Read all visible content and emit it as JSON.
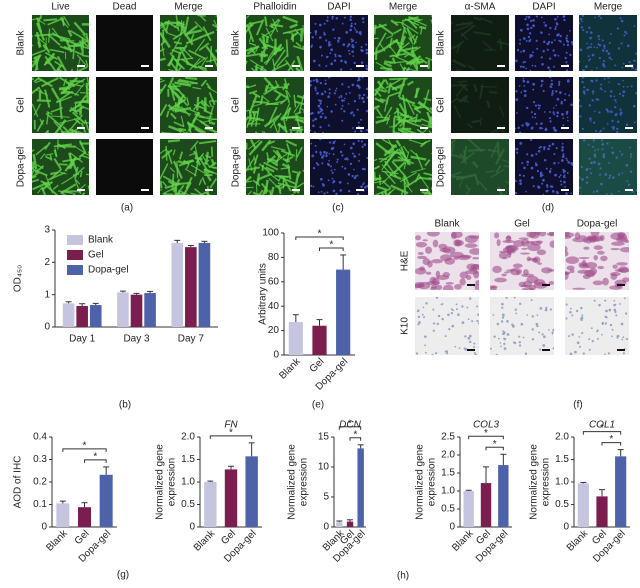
{
  "micrographs": [
    {
      "columns": [
        "Live",
        "Dead",
        "Merge"
      ],
      "rows": [
        "Blank",
        "Gel",
        "Dopa-gel"
      ],
      "label": "(a)"
    },
    {
      "columns": [
        "Phalloidin",
        "DAPI",
        "Merge"
      ],
      "rows": [
        "Blank",
        "Gel",
        "Dopa-gel"
      ],
      "label": "(c)"
    },
    {
      "columns": [
        "α-SMA",
        "DAPI",
        "Merge"
      ],
      "rows": [
        "Blank",
        "Gel",
        "Dopa-gel"
      ],
      "label": "(d)"
    },
    {
      "columns": [
        "Blank",
        "Gel",
        "Dopa-gel"
      ],
      "rows": [
        "H&E",
        "K10"
      ],
      "label": "(f)"
    }
  ],
  "chart_data": [
    {
      "type": "bar",
      "ylabel": "OD₄₅₀",
      "label": "(b)",
      "categories": [
        "Day 1",
        "Day 3",
        "Day 7"
      ],
      "series": [
        {
          "name": "Blank",
          "color": "#c5c5df",
          "values": [
            0.73,
            1.07,
            2.6
          ],
          "errors": [
            0.05,
            0.04,
            0.08
          ]
        },
        {
          "name": "Gel",
          "color": "#7b1d4f",
          "values": [
            0.65,
            1.0,
            2.47
          ],
          "errors": [
            0.07,
            0.04,
            0.05
          ]
        },
        {
          "name": "Dopa-gel",
          "color": "#4d62a8",
          "values": [
            0.68,
            1.05,
            2.6
          ],
          "errors": [
            0.05,
            0.05,
            0.05
          ]
        }
      ],
      "ylim": [
        0,
        3
      ],
      "yticks": [
        0,
        1,
        2,
        3
      ],
      "legend": "upper left"
    },
    {
      "type": "bar",
      "ylabel": "Arbitrary units",
      "label": "(e)",
      "categories": [
        "Blank",
        "Gel",
        "Dopa-gel"
      ],
      "values": [
        27,
        24,
        70
      ],
      "errors": [
        6,
        5,
        12
      ],
      "colors": [
        "#c5c5df",
        "#7b1d4f",
        "#4d62a8"
      ],
      "ylim": [
        0,
        100
      ],
      "yticks": [
        0,
        20,
        40,
        60,
        80,
        100
      ],
      "significance": [
        {
          "between": [
            "Blank",
            "Dopa-gel"
          ],
          "label": "*"
        },
        {
          "between": [
            "Gel",
            "Dopa-gel"
          ],
          "label": "*"
        }
      ]
    },
    {
      "type": "bar",
      "ylabel": "AOD of IHC",
      "label": "(g)",
      "categories": [
        "Blank",
        "Gel",
        "Dopa-gel"
      ],
      "values": [
        0.105,
        0.088,
        0.232
      ],
      "errors": [
        0.01,
        0.02,
        0.035
      ],
      "colors": [
        "#c5c5df",
        "#7b1d4f",
        "#4d62a8"
      ],
      "ylim": [
        0,
        0.4
      ],
      "yticks": [
        0,
        0.1,
        0.2,
        0.3,
        0.4
      ],
      "significance": [
        {
          "between": [
            "Blank",
            "Dopa-gel"
          ],
          "label": "*"
        },
        {
          "between": [
            "Gel",
            "Dopa-gel"
          ],
          "label": "*"
        }
      ]
    },
    {
      "type": "bar",
      "title": "FN",
      "ylabel": [
        "Normalized gene",
        "expression"
      ],
      "categories": [
        "Blank",
        "Gel",
        "Dopa-gel"
      ],
      "values": [
        1.0,
        1.28,
        1.57
      ],
      "errors": [
        0.02,
        0.07,
        0.3
      ],
      "colors": [
        "#c5c5df",
        "#7b1d4f",
        "#4d62a8"
      ],
      "ylim": [
        0,
        2
      ],
      "yticks": [
        0,
        0.5,
        {
          "value": 1,
          "label": "1.0"
        },
        1.5,
        {
          "value": 2,
          "label": "2.0"
        }
      ],
      "significance": [
        {
          "between": [
            "Blank",
            "Dopa-gel"
          ],
          "label": "*"
        }
      ]
    },
    {
      "type": "bar",
      "title": "DCN",
      "ylabel": [
        "Normalized gene",
        "expression"
      ],
      "categories": [
        "Blank",
        "Gel",
        "Dopa-gel"
      ],
      "values": [
        0.8,
        0.9,
        13.1
      ],
      "errors": [
        0.2,
        0.3,
        0.6
      ],
      "colors": [
        "#c5c5df",
        "#7b1d4f",
        "#4d62a8"
      ],
      "ylim": [
        0,
        15
      ],
      "yticks": [
        0,
        5,
        10,
        15
      ],
      "significance": [
        {
          "between": [
            "Blank",
            "Dopa-gel"
          ],
          "label": "*"
        },
        {
          "between": [
            "Gel",
            "Dopa-gel"
          ],
          "label": "*"
        }
      ]
    },
    {
      "type": "bar",
      "title": "COL3",
      "ylabel": [
        "Normalized gene",
        "expression"
      ],
      "categories": [
        "Blank",
        "Gel",
        "Dopa-gel"
      ],
      "values": [
        1.0,
        1.22,
        1.72
      ],
      "errors": [
        0.02,
        0.45,
        0.3
      ],
      "colors": [
        "#c5c5df",
        "#7b1d4f",
        "#4d62a8"
      ],
      "ylim": [
        0,
        2.5
      ],
      "yticks": [
        0,
        0.5,
        {
          "value": 1,
          "label": "1.0"
        },
        1.5,
        {
          "value": 2,
          "label": "2.0"
        },
        2.5
      ],
      "significance": [
        {
          "between": [
            "Blank",
            "Dopa-gel"
          ],
          "label": "*"
        },
        {
          "between": [
            "Gel",
            "Dopa-gel"
          ],
          "label": "*"
        }
      ]
    },
    {
      "type": "bar",
      "title": "COL1",
      "ylabel": [
        "Normalized gene",
        "expression"
      ],
      "categories": [
        "Blank",
        "Gel",
        "Dopa-gel"
      ],
      "values": [
        0.97,
        0.68,
        1.57
      ],
      "errors": [
        0.02,
        0.15,
        0.15
      ],
      "colors": [
        "#c5c5df",
        "#7b1d4f",
        "#4d62a8"
      ],
      "ylim": [
        0,
        2
      ],
      "yticks": [
        0,
        0.5,
        {
          "value": 1,
          "label": "1.0"
        },
        1.5,
        {
          "value": 2,
          "label": "2.0"
        }
      ],
      "significance": [
        {
          "between": [
            "Blank",
            "Dopa-gel"
          ],
          "label": "*"
        },
        {
          "between": [
            "Gel",
            "Dopa-gel"
          ],
          "label": "*"
        }
      ]
    }
  ],
  "shared_label": "(h)"
}
